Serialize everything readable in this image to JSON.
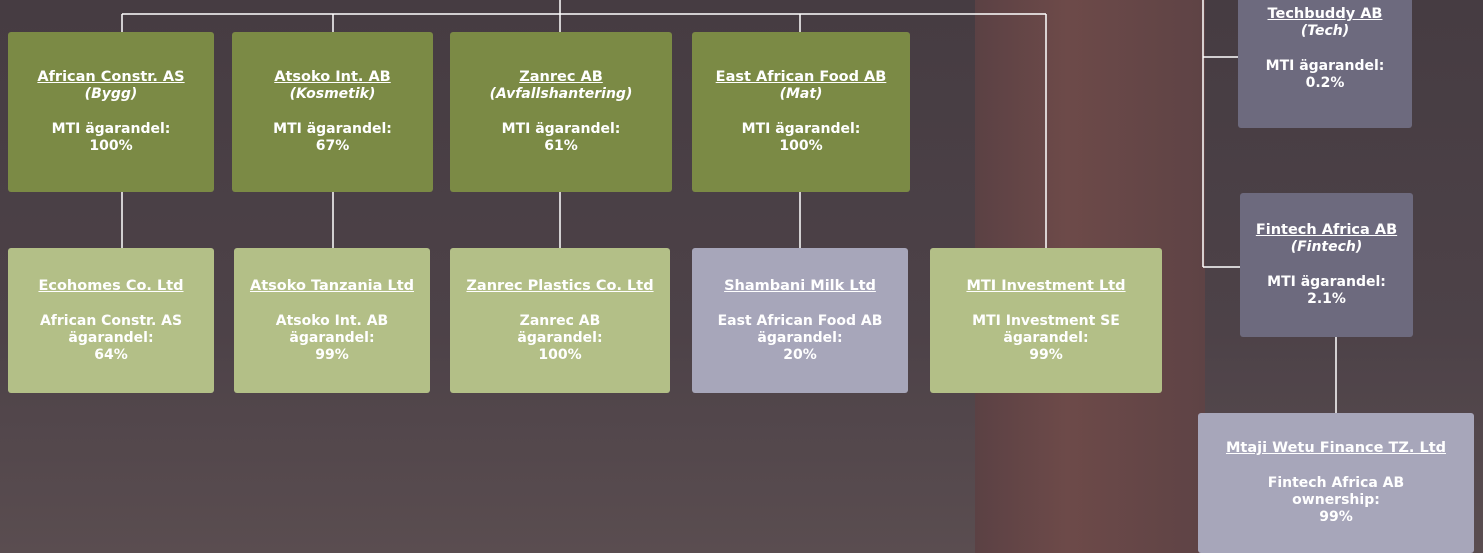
{
  "nodes": [
    {
      "title": "African Constr. AS",
      "subtitle": "(Bygg)",
      "lines": [
        "MTI ägarandel:",
        "100%"
      ]
    },
    {
      "title": "Atsoko Int. AB",
      "subtitle": "(Kosmetik)",
      "lines": [
        "MTI ägarandel:",
        "67%"
      ]
    },
    {
      "title": "Zanrec AB",
      "subtitle": "(Avfallshantering)",
      "lines": [
        "MTI ägarandel:",
        "61%"
      ]
    },
    {
      "title": "East African Food AB",
      "subtitle": "(Mat)",
      "lines": [
        "MTI ägarandel:",
        "100%"
      ]
    },
    {
      "title": "Ecohomes Co. Ltd",
      "lines": [
        "African Constr. AS",
        "ägarandel:",
        "64%"
      ]
    },
    {
      "title": "Atsoko Tanzania Ltd",
      "lines": [
        "Atsoko Int. AB",
        "ägarandel:",
        "99%"
      ]
    },
    {
      "title": "Zanrec Plastics Co. Ltd",
      "lines": [
        "Zanrec AB",
        "ägarandel:",
        "100%"
      ]
    },
    {
      "title": "Shambani Milk Ltd",
      "lines": [
        "East African Food AB",
        "ägarandel:",
        "20%"
      ]
    },
    {
      "title": "MTI Investment Ltd",
      "lines": [
        "MTI Investment SE",
        "ägarandel:",
        "99%"
      ]
    },
    {
      "title": "Techbuddy AB",
      "subtitle": "(Tech)",
      "lines": [
        "MTI ägarandel:",
        "0.2%"
      ]
    },
    {
      "title": "Fintech Africa AB",
      "subtitle": "(Fintech)",
      "lines": [
        "MTI ägarandel:",
        "2.1%"
      ]
    },
    {
      "title": "Mtaji Wetu Finance TZ. Ltd",
      "lines": [
        "Fintech Africa AB",
        "ownership:",
        "99%"
      ]
    }
  ]
}
